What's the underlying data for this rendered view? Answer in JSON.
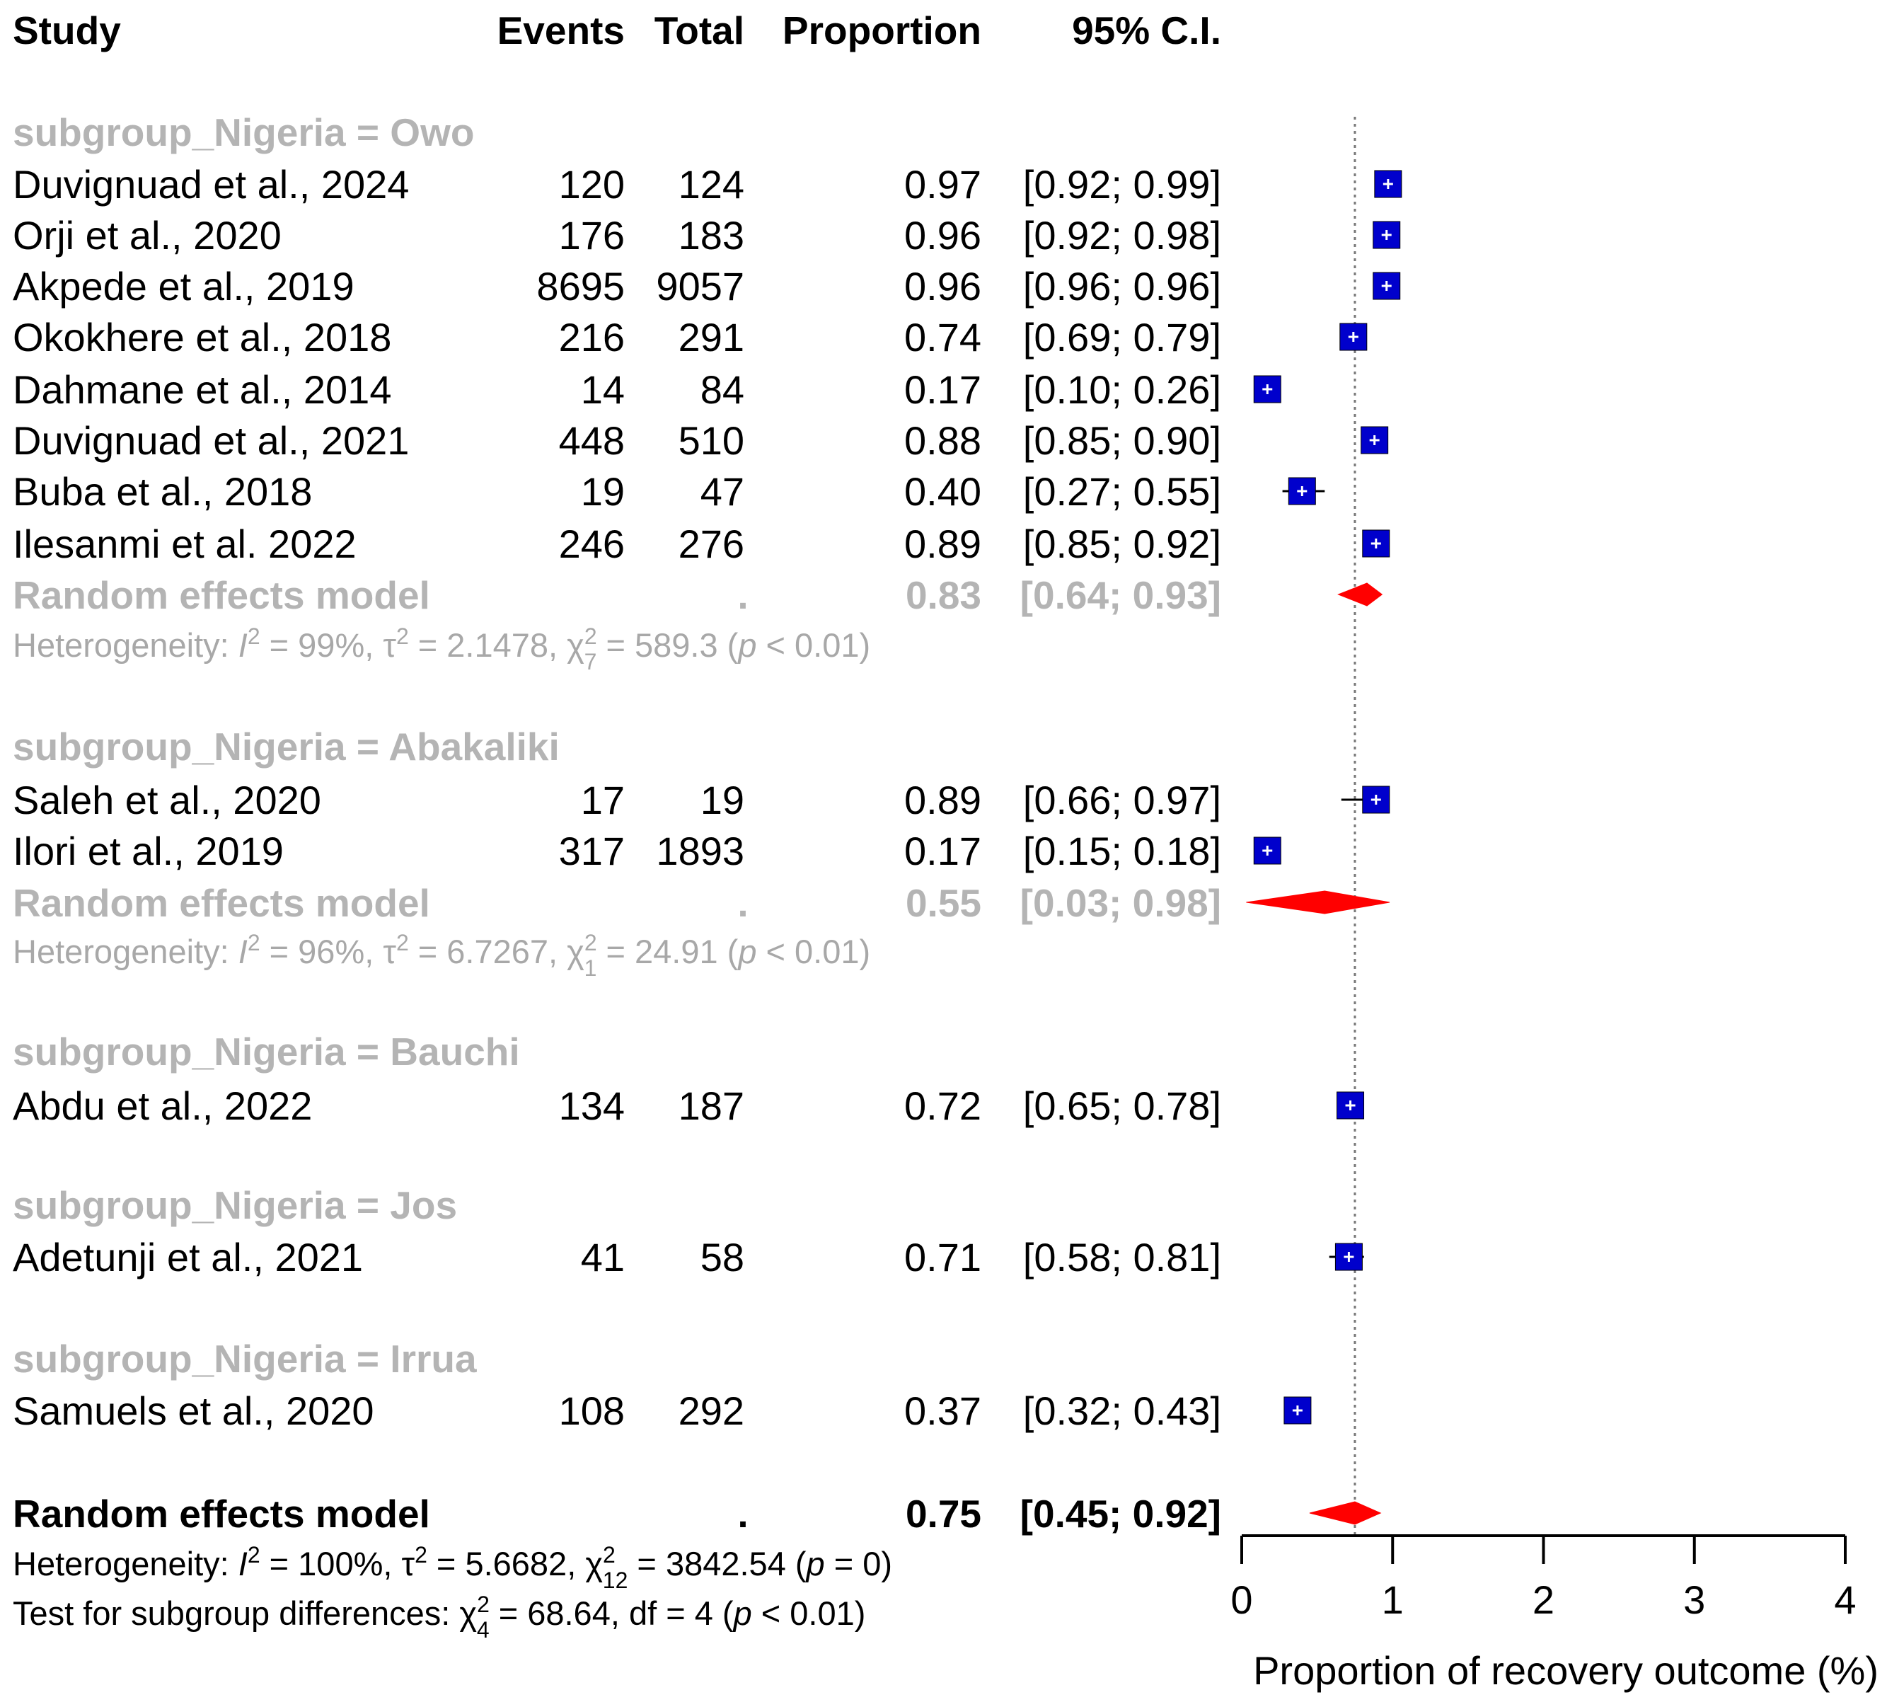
{
  "chart_data": {
    "type": "forest",
    "columns": [
      "Study",
      "Events",
      "Total",
      "Proportion",
      "95% C.I."
    ],
    "xlabel": "Proportion of recovery outcome (%)",
    "xlim": [
      0,
      4
    ],
    "xticks": [
      "0",
      "1",
      "2",
      "3",
      "4"
    ],
    "reference_line": 0.75,
    "subgroups": [
      {
        "label": "subgroup_Nigeria = Owo",
        "studies": [
          {
            "study": "Duvignuad et al., 2024",
            "events": "120",
            "total": "124",
            "prop": "0.97",
            "ci": "[0.92; 0.99]",
            "p": 0.97,
            "lo": 0.92,
            "hi": 0.99,
            "size": 36
          },
          {
            "study": "Orji et al., 2020",
            "events": "176",
            "total": "183",
            "prop": "0.96",
            "ci": "[0.92; 0.98]",
            "p": 0.96,
            "lo": 0.92,
            "hi": 0.98,
            "size": 36
          },
          {
            "study": "Akpede et al., 2019",
            "events": "8695",
            "total": "9057",
            "prop": "0.96",
            "ci": "[0.96; 0.96]",
            "p": 0.96,
            "lo": 0.96,
            "hi": 0.96,
            "size": 36
          },
          {
            "study": "Okokhere et al., 2018",
            "events": "216",
            "total": "291",
            "prop": "0.74",
            "ci": "[0.69; 0.79]",
            "p": 0.74,
            "lo": 0.69,
            "hi": 0.79,
            "size": 36
          },
          {
            "study": "Dahmane et al., 2014",
            "events": "14",
            "total": "84",
            "prop": "0.17",
            "ci": "[0.10; 0.26]",
            "p": 0.17,
            "lo": 0.1,
            "hi": 0.26,
            "size": 36
          },
          {
            "study": "Duvignuad et al., 2021",
            "events": "448",
            "total": "510",
            "prop": "0.88",
            "ci": "[0.85; 0.90]",
            "p": 0.88,
            "lo": 0.85,
            "hi": 0.9,
            "size": 36
          },
          {
            "study": "Buba et al., 2018",
            "events": "19",
            "total": "47",
            "prop": "0.40",
            "ci": "[0.27; 0.55]",
            "p": 0.4,
            "lo": 0.27,
            "hi": 0.55,
            "size": 36
          },
          {
            "study": "Ilesanmi et al. 2022",
            "events": "246",
            "total": "276",
            "prop": "0.89",
            "ci": "[0.85; 0.92]",
            "p": 0.89,
            "lo": 0.85,
            "hi": 0.92,
            "size": 36
          }
        ],
        "re_label": "Random effects model",
        "re_dot": ".",
        "re_prop": "0.83",
        "re_ci": "[0.64; 0.93]",
        "re_p": 0.83,
        "re_lo": 0.64,
        "re_hi": 0.93,
        "het_prefix": "Heterogeneity: ",
        "het_I": "I",
        "het_I2": " = 99%, ",
        "het_tau": "τ",
        "het_tau2": " = 2.1478, ",
        "het_chi": "χ",
        "het_chi_sub": "7",
        "het_chi_val": " = 589.3 (",
        "het_p_it": "p",
        "het_p_val": " < 0.01)"
      },
      {
        "label": "subgroup_Nigeria = Abakaliki",
        "studies": [
          {
            "study": "Saleh et al., 2020",
            "events": "17",
            "total": "19",
            "prop": "0.89",
            "ci": "[0.66; 0.97]",
            "p": 0.89,
            "lo": 0.66,
            "hi": 0.97,
            "size": 36
          },
          {
            "study": "Ilori et al., 2019",
            "events": "317",
            "total": "1893",
            "prop": "0.17",
            "ci": "[0.15; 0.18]",
            "p": 0.17,
            "lo": 0.15,
            "hi": 0.18,
            "size": 36
          }
        ],
        "re_label": "Random effects model",
        "re_dot": ".",
        "re_prop": "0.55",
        "re_ci": "[0.03; 0.98]",
        "re_p": 0.55,
        "re_lo": 0.03,
        "re_hi": 0.98,
        "het_prefix": "Heterogeneity: ",
        "het_I": "I",
        "het_I2": " = 96%, ",
        "het_tau": "τ",
        "het_tau2": " = 6.7267, ",
        "het_chi": "χ",
        "het_chi_sub": "1",
        "het_chi_val": " = 24.91 (",
        "het_p_it": "p",
        "het_p_val": " < 0.01)"
      },
      {
        "label": "subgroup_Nigeria = Bauchi",
        "studies": [
          {
            "study": "Abdu et al., 2022",
            "events": "134",
            "total": "187",
            "prop": "0.72",
            "ci": "[0.65; 0.78]",
            "p": 0.72,
            "lo": 0.65,
            "hi": 0.78,
            "size": 36
          }
        ]
      },
      {
        "label": "subgroup_Nigeria = Jos",
        "studies": [
          {
            "study": "Adetunji et al., 2021",
            "events": "41",
            "total": "58",
            "prop": "0.71",
            "ci": "[0.58; 0.81]",
            "p": 0.71,
            "lo": 0.58,
            "hi": 0.81,
            "size": 36
          }
        ]
      },
      {
        "label": "subgroup_Nigeria = Irrua",
        "studies": [
          {
            "study": "Samuels et al., 2020",
            "events": "108",
            "total": "292",
            "prop": "0.37",
            "ci": "[0.32; 0.43]",
            "p": 0.37,
            "lo": 0.32,
            "hi": 0.43,
            "size": 36
          }
        ]
      }
    ],
    "overall": {
      "re_label": "Random effects model",
      "re_dot": ".",
      "re_prop": "0.75",
      "re_ci": "[0.45; 0.92]",
      "re_p": 0.75,
      "re_lo": 0.45,
      "re_hi": 0.92,
      "het_prefix": "Heterogeneity: ",
      "het_I": "I",
      "het_I2": " = 100%, ",
      "het_tau": "τ",
      "het_tau2": " = 5.6682, ",
      "het_chi": "χ",
      "het_chi_sub": "12",
      "het_chi_val": " = 3842.54 (",
      "het_p_it": "p",
      "het_p_val": " = 0)",
      "sub_prefix": "Test for subgroup differences: ",
      "sub_chi": "χ",
      "sub_chi_sub": "4",
      "sub_chi_val": " = 68.64, df = 4 (",
      "sub_p_it": "p",
      "sub_p_val": " < 0.01)"
    },
    "colors": {
      "study_box": "#0000cc",
      "diamond": "#ff0000",
      "subgroup_text": "#b4b4b4",
      "heterogeneity_text": "#a8a8a8"
    }
  }
}
